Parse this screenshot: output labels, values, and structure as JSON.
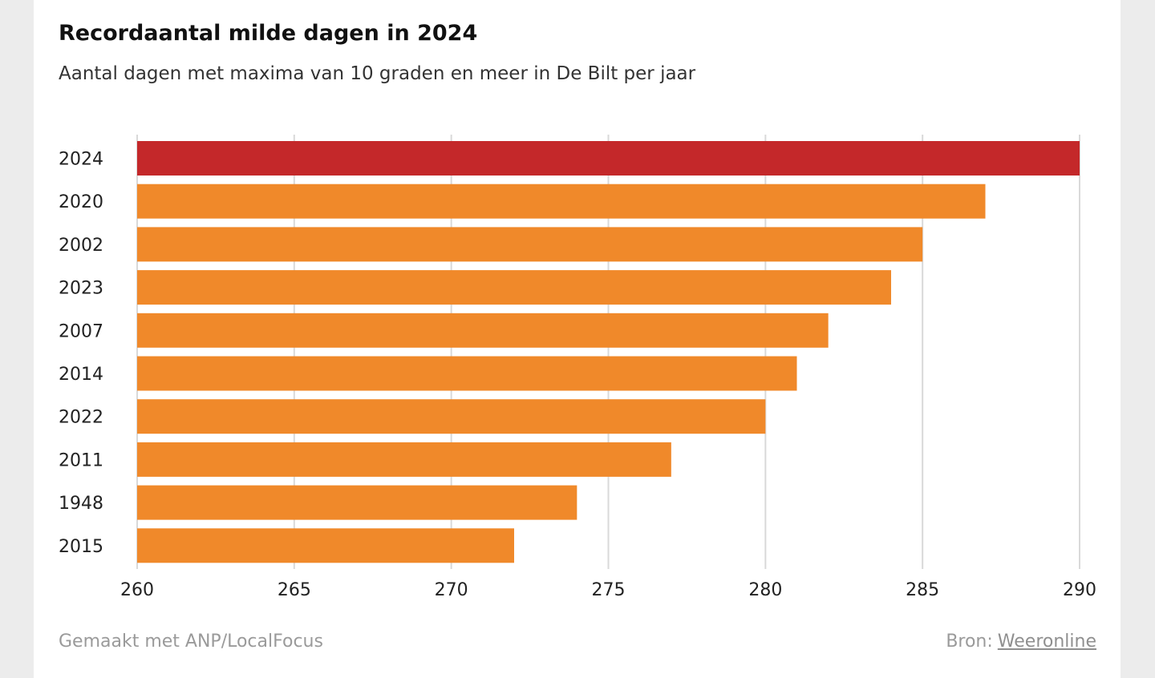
{
  "chart_data": {
    "type": "bar",
    "orientation": "horizontal",
    "title": "Recordaantal milde dagen in 2024",
    "subtitle": "Aantal dagen met maxima van 10 graden en meer in De Bilt per jaar",
    "categories": [
      "2024",
      "2020",
      "2002",
      "2023",
      "2007",
      "2014",
      "2022",
      "2011",
      "1948",
      "2015"
    ],
    "values": [
      290,
      287,
      285,
      284,
      282,
      281,
      280,
      277,
      274,
      272
    ],
    "highlight": "2024",
    "xlim": [
      260,
      290
    ],
    "xticks": [
      260,
      265,
      270,
      275,
      280,
      285,
      290
    ],
    "grid": true,
    "colors": {
      "highlight": "#c4282a",
      "default": "#f0892a",
      "grid": "#d9d9d9"
    }
  },
  "footer": {
    "made_with": "Gemaakt met ANP/LocalFocus",
    "source_label": "Bron:",
    "source_link": "Weeronline"
  }
}
